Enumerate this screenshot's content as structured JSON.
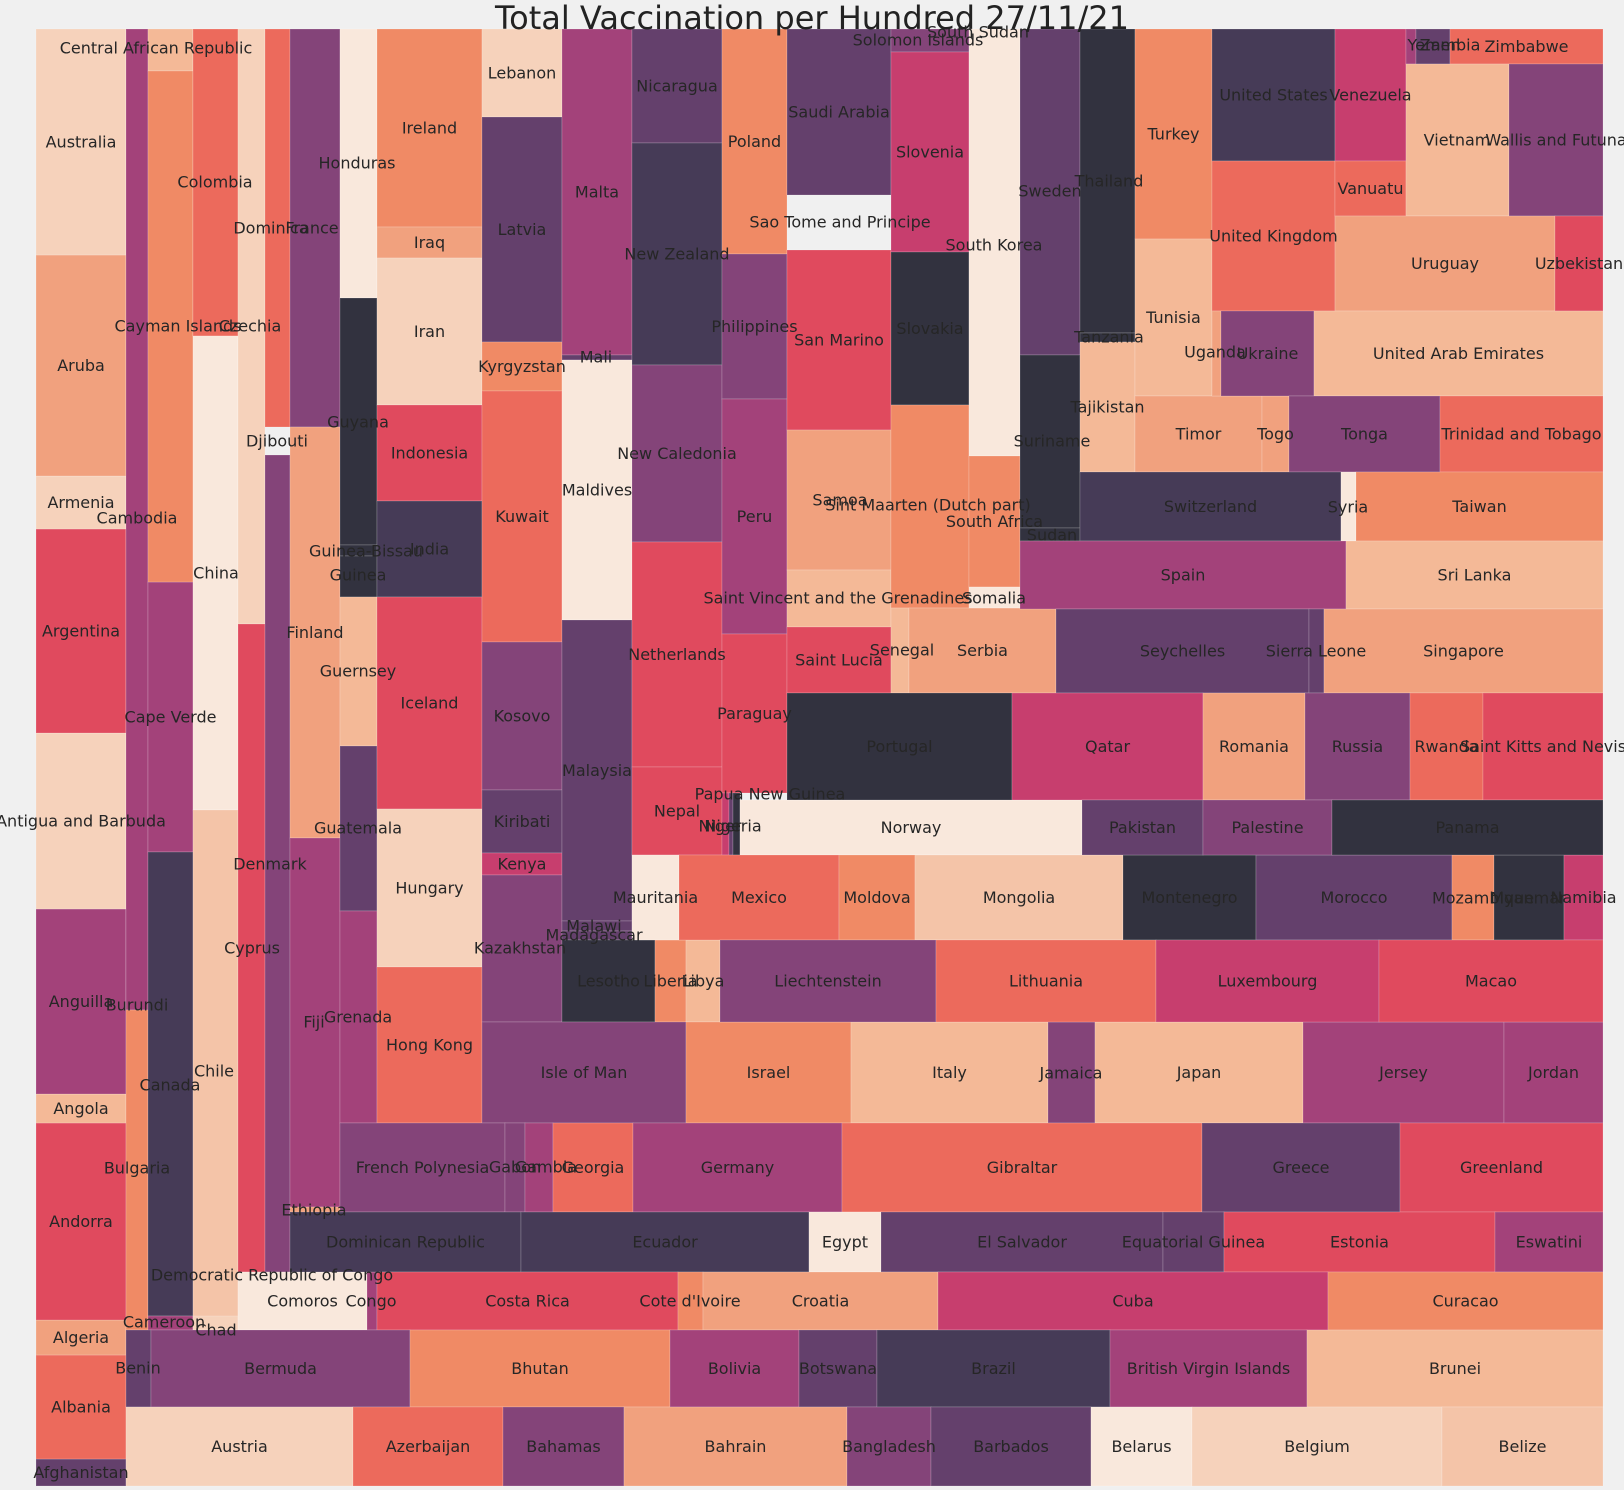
{
  "chart_data": {
    "type": "treemap",
    "title": "Total Vaccination per Hundred 27/11/21",
    "palette": [
      "#F9E8DC",
      "#F6D2BB",
      "#F4B997",
      "#F1A17E",
      "#F08A65",
      "#EC6A5C",
      "#E04A5E",
      "#C73E6E",
      "#A3427A",
      "#844479",
      "#64406C",
      "#463B57",
      "#32323F"
    ],
    "tiles": [
      {
        "label": "Afghanistan",
        "color": "#64406C"
      },
      {
        "label": "Albania",
        "color": "#EC6A5C"
      },
      {
        "label": "Algeria",
        "color": "#F1A17E"
      },
      {
        "label": "Andorra",
        "color": "#E04A5E"
      },
      {
        "label": "Angola",
        "color": "#F4B997"
      },
      {
        "label": "Anguilla",
        "color": "#A3427A"
      },
      {
        "label": "Antigua and Barbuda",
        "color": "#F6D2BB"
      },
      {
        "label": "Argentina",
        "color": "#E04A5E"
      },
      {
        "label": "Armenia",
        "color": "#F6D2BB"
      },
      {
        "label": "Aruba",
        "color": "#F1A17E"
      },
      {
        "label": "Australia",
        "color": "#F6D2BB"
      },
      {
        "label": "Burundi",
        "color": "#A3427A"
      },
      {
        "label": "Cambodia",
        "color": "#A3427A"
      },
      {
        "label": "Cape Verde",
        "color": "#A3427A"
      },
      {
        "label": "Central African Republic",
        "color": "#F4B997"
      },
      {
        "label": "Cayman Islands",
        "color": "#F08A65"
      },
      {
        "label": "Bulgaria",
        "color": "#F08A65"
      },
      {
        "label": "Canada",
        "color": "#463B57"
      },
      {
        "label": "Cameroon",
        "color": "#A3427A"
      },
      {
        "label": "Colombia",
        "color": "#EC6A5C"
      },
      {
        "label": "Czechia",
        "color": "#EC6A5C"
      },
      {
        "label": "China",
        "color": "#F9E8DC"
      },
      {
        "label": "Chile",
        "color": "#F4C4A8"
      },
      {
        "label": "Chad",
        "color": "#F6D2BB"
      },
      {
        "label": "Dominica",
        "color": "#F6D2BB"
      },
      {
        "label": "Djibouti",
        "color": "#EC6A5C"
      },
      {
        "label": "Cyprus",
        "color": "#E04A5E"
      },
      {
        "label": "Denmark",
        "color": "#844479"
      },
      {
        "label": "France",
        "color": "#844479"
      },
      {
        "label": "Finland",
        "color": "#F1A17E"
      },
      {
        "label": "Fiji",
        "color": "#A3427A"
      },
      {
        "label": "Ethiopia",
        "color": "#F1A17E"
      },
      {
        "label": "Honduras",
        "color": "#F9E8DC"
      },
      {
        "label": "Guyana",
        "color": "#32323F"
      },
      {
        "label": "Guinea-Bissau",
        "color": "#32323F"
      },
      {
        "label": "Guinea",
        "color": "#32323F"
      },
      {
        "label": "Guernsey",
        "color": "#F4B997"
      },
      {
        "label": "Guatemala",
        "color": "#64406C"
      },
      {
        "label": "Grenada",
        "color": "#A3427A"
      },
      {
        "label": "Democratic Republic of Congo",
        "color": "#F9E8DC"
      },
      {
        "label": "Comoros",
        "color": "#F9E8DC"
      },
      {
        "label": "Congo",
        "color": "#A3427A"
      },
      {
        "label": "Ireland",
        "color": "#F08A65"
      },
      {
        "label": "Iraq",
        "color": "#F1A17E"
      },
      {
        "label": "Iran",
        "color": "#F6D2BB"
      },
      {
        "label": "Indonesia",
        "color": "#E04A5E"
      },
      {
        "label": "India",
        "color": "#463B57"
      },
      {
        "label": "Iceland",
        "color": "#E04A5E"
      },
      {
        "label": "Hungary",
        "color": "#F6D2BB"
      },
      {
        "label": "Hong Kong",
        "color": "#EC6A5C"
      },
      {
        "label": "Lebanon",
        "color": "#F6D2BB"
      },
      {
        "label": "Latvia",
        "color": "#64406C"
      },
      {
        "label": "Kyrgyzstan",
        "color": "#F08A65"
      },
      {
        "label": "Kuwait",
        "color": "#EC6A5C"
      },
      {
        "label": "Kosovo",
        "color": "#844479"
      },
      {
        "label": "Kiribati",
        "color": "#64406C"
      },
      {
        "label": "Kenya",
        "color": "#C73E6E"
      },
      {
        "label": "Kazakhstan",
        "color": "#844479"
      },
      {
        "label": "Malta",
        "color": "#A3427A"
      },
      {
        "label": "Mali",
        "color": "#64406C"
      },
      {
        "label": "Maldives",
        "color": "#F9E8DC"
      },
      {
        "label": "Malaysia",
        "color": "#64406C"
      },
      {
        "label": "Malawi",
        "color": "#64406C"
      },
      {
        "label": "Madagascar",
        "color": "#64406C"
      },
      {
        "label": "Lesotho",
        "color": "#32323F"
      },
      {
        "label": "Liberia",
        "color": "#F08A65"
      },
      {
        "label": "Libya",
        "color": "#F4B997"
      },
      {
        "label": "Nicaragua",
        "color": "#64406C"
      },
      {
        "label": "New Zealand",
        "color": "#463B57"
      },
      {
        "label": "New Caledonia",
        "color": "#844479"
      },
      {
        "label": "Netherlands",
        "color": "#E04A5E"
      },
      {
        "label": "Nepal",
        "color": "#E04A5E"
      },
      {
        "label": "Mauritania",
        "color": "#F9E8DC"
      },
      {
        "label": "Poland",
        "color": "#F08A65"
      },
      {
        "label": "Philippines",
        "color": "#844479"
      },
      {
        "label": "Peru",
        "color": "#A3427A"
      },
      {
        "label": "Paraguay",
        "color": "#E04A5E"
      },
      {
        "label": "Papua New Guinea",
        "color": "#C73E6E"
      },
      {
        "label": "Niger",
        "color": "#64406C"
      },
      {
        "label": "Nigeria",
        "color": "#32323F"
      },
      {
        "label": "Norway",
        "color": "#F9E8DC"
      },
      {
        "label": "Mexico",
        "color": "#EC6A5C"
      },
      {
        "label": "Moldova",
        "color": "#F08A65"
      },
      {
        "label": "Mongolia",
        "color": "#F4C4A8"
      },
      {
        "label": "Montenegro",
        "color": "#32323F"
      },
      {
        "label": "Morocco",
        "color": "#64406C"
      },
      {
        "label": "Mozambique",
        "color": "#F08A65"
      },
      {
        "label": "Myanmar",
        "color": "#32323F"
      },
      {
        "label": "Namibia",
        "color": "#C73E6E"
      },
      {
        "label": "Saudi Arabia",
        "color": "#64406C"
      },
      {
        "label": "Sao Tome and Principe",
        "color": "#C73E6E"
      },
      {
        "label": "San Marino",
        "color": "#E04A5E"
      },
      {
        "label": "Samoa",
        "color": "#F1A17E"
      },
      {
        "label": "Saint Vincent and the Grenadines",
        "color": "#F4B997"
      },
      {
        "label": "Saint Lucia",
        "color": "#E04A5E"
      },
      {
        "label": "Solomon Islands",
        "color": "#844479"
      },
      {
        "label": "Slovenia",
        "color": "#C73E6E"
      },
      {
        "label": "Slovakia",
        "color": "#32323F"
      },
      {
        "label": "Sint Maarten (Dutch part)",
        "color": "#F08A65"
      },
      {
        "label": "Senegal",
        "color": "#F4B997"
      },
      {
        "label": "Serbia",
        "color": "#F1A17E"
      },
      {
        "label": "South Sudan",
        "color": "#F9E8DC"
      },
      {
        "label": "South Korea",
        "color": "#F9E8DC"
      },
      {
        "label": "South Africa",
        "color": "#F08A65"
      },
      {
        "label": "Somalia",
        "color": "#F9E8DC"
      },
      {
        "label": "Sweden",
        "color": "#64406C"
      },
      {
        "label": "Suriname",
        "color": "#32323F"
      },
      {
        "label": "Sudan",
        "color": "#32323F"
      },
      {
        "label": "Thailand",
        "color": "#32323F"
      },
      {
        "label": "Tanzania",
        "color": "#32323F"
      },
      {
        "label": "Tajikistan",
        "color": "#F4B997"
      },
      {
        "label": "Turkey",
        "color": "#F08A65"
      },
      {
        "label": "Tunisia",
        "color": "#F4B997"
      },
      {
        "label": "Timor",
        "color": "#F1A17E"
      },
      {
        "label": "Togo",
        "color": "#F1A17E"
      },
      {
        "label": "United States",
        "color": "#463B57"
      },
      {
        "label": "United Kingdom",
        "color": "#EC6A5C"
      },
      {
        "label": "Uganda",
        "color": "#F1A17E"
      },
      {
        "label": "Ukraine",
        "color": "#844479"
      },
      {
        "label": "Venezuela",
        "color": "#C73E6E"
      },
      {
        "label": "Vanuatu",
        "color": "#EC6A5C"
      },
      {
        "label": "Yemen",
        "color": "#A3427A"
      },
      {
        "label": "Zambia",
        "color": "#64406C"
      },
      {
        "label": "Zimbabwe",
        "color": "#EC6A5C"
      },
      {
        "label": "Vietnam",
        "color": "#F4B997"
      },
      {
        "label": "Wallis and Futuna",
        "color": "#844479"
      },
      {
        "label": "Uruguay",
        "color": "#F1A17E"
      },
      {
        "label": "Uzbekistan",
        "color": "#E04A5E"
      },
      {
        "label": "United Arab Emirates",
        "color": "#F4B997"
      },
      {
        "label": "Tonga",
        "color": "#844479"
      },
      {
        "label": "Trinidad and Tobago",
        "color": "#EC6A5C"
      },
      {
        "label": "Switzerland",
        "color": "#463B57"
      },
      {
        "label": "Syria",
        "color": "#F9E8DC"
      },
      {
        "label": "Taiwan",
        "color": "#F08A65"
      },
      {
        "label": "Spain",
        "color": "#A3427A"
      },
      {
        "label": "Sri Lanka",
        "color": "#F4B997"
      },
      {
        "label": "Seychelles",
        "color": "#64406C"
      },
      {
        "label": "Sierra Leone",
        "color": "#64406C"
      },
      {
        "label": "Singapore",
        "color": "#F1A17E"
      },
      {
        "label": "Portugal",
        "color": "#32323F"
      },
      {
        "label": "Qatar",
        "color": "#C73E6E"
      },
      {
        "label": "Romania",
        "color": "#F1A17E"
      },
      {
        "label": "Russia",
        "color": "#844479"
      },
      {
        "label": "Rwanda",
        "color": "#EC6A5C"
      },
      {
        "label": "Saint Kitts and Nevis",
        "color": "#E04A5E"
      },
      {
        "label": "Pakistan",
        "color": "#64406C"
      },
      {
        "label": "Palestine",
        "color": "#844479"
      },
      {
        "label": "Panama",
        "color": "#32323F"
      },
      {
        "label": "Isle of Man",
        "color": "#844479"
      },
      {
        "label": "Israel",
        "color": "#F08A65"
      },
      {
        "label": "Italy",
        "color": "#F4B997"
      },
      {
        "label": "Jamaica",
        "color": "#844479"
      },
      {
        "label": "Japan",
        "color": "#F4B997"
      },
      {
        "label": "Jersey",
        "color": "#A3427A"
      },
      {
        "label": "Jordan",
        "color": "#A3427A"
      },
      {
        "label": "Liechtenstein",
        "color": "#844479"
      },
      {
        "label": "Lithuania",
        "color": "#EC6A5C"
      },
      {
        "label": "Luxembourg",
        "color": "#C73E6E"
      },
      {
        "label": "Macao",
        "color": "#E04A5E"
      },
      {
        "label": "French Polynesia",
        "color": "#844479"
      },
      {
        "label": "Gabon",
        "color": "#844479"
      },
      {
        "label": "Gambia",
        "color": "#A3427A"
      },
      {
        "label": "Georgia",
        "color": "#EC6A5C"
      },
      {
        "label": "Germany",
        "color": "#A3427A"
      },
      {
        "label": "Gibraltar",
        "color": "#EC6A5C"
      },
      {
        "label": "Greece",
        "color": "#64406C"
      },
      {
        "label": "Greenland",
        "color": "#E04A5E"
      },
      {
        "label": "Dominican Republic",
        "color": "#463B57"
      },
      {
        "label": "Ecuador",
        "color": "#463B57"
      },
      {
        "label": "Egypt",
        "color": "#F9E8DC"
      },
      {
        "label": "El Salvador",
        "color": "#64406C"
      },
      {
        "label": "Equatorial Guinea",
        "color": "#64406C"
      },
      {
        "label": "Estonia",
        "color": "#E04A5E"
      },
      {
        "label": "Eswatini",
        "color": "#A3427A"
      },
      {
        "label": "Costa Rica",
        "color": "#E04A5E"
      },
      {
        "label": "Cote d'Ivoire",
        "color": "#F08A65"
      },
      {
        "label": "Croatia",
        "color": "#F1A17E"
      },
      {
        "label": "Cuba",
        "color": "#C73E6E"
      },
      {
        "label": "Curacao",
        "color": "#F08A65"
      },
      {
        "label": "Benin",
        "color": "#64406C"
      },
      {
        "label": "Bermuda",
        "color": "#844479"
      },
      {
        "label": "Bhutan",
        "color": "#F08A65"
      },
      {
        "label": "Bolivia",
        "color": "#A3427A"
      },
      {
        "label": "Botswana",
        "color": "#64406C"
      },
      {
        "label": "Brazil",
        "color": "#463B57"
      },
      {
        "label": "British Virgin Islands",
        "color": "#A3427A"
      },
      {
        "label": "Brunei",
        "color": "#F4B997"
      },
      {
        "label": "Austria",
        "color": "#F6D2BB"
      },
      {
        "label": "Azerbaijan",
        "color": "#EC6A5C"
      },
      {
        "label": "Bahamas",
        "color": "#844479"
      },
      {
        "label": "Bahrain",
        "color": "#F1A17E"
      },
      {
        "label": "Bangladesh",
        "color": "#844479"
      },
      {
        "label": "Barbados",
        "color": "#64406C"
      },
      {
        "label": "Belarus",
        "color": "#F9E8DC"
      },
      {
        "label": "Belgium",
        "color": "#F6D2BB"
      },
      {
        "label": "Belize",
        "color": "#F4C4A8"
      }
    ]
  }
}
